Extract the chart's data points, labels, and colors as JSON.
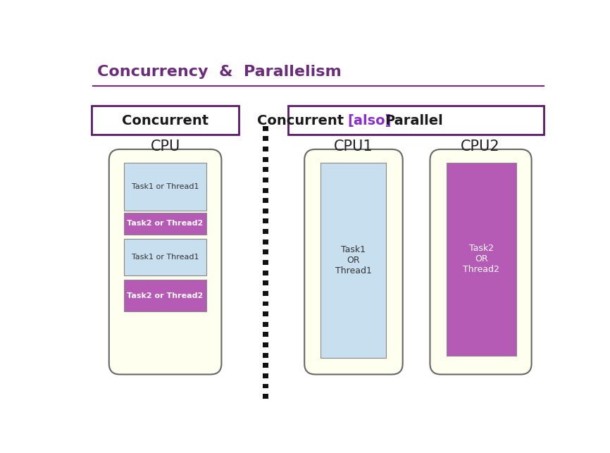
{
  "title": "Concurrency  &  Parallelism",
  "title_color": "#6b2c7a",
  "title_fontsize": 16,
  "bg_color": "#ffffff",
  "line_color": "#7b2882",
  "concurrent_label": "Concurrent",
  "cpu_label": "CPU",
  "cpu1_label": "CPU1",
  "cpu2_label": "CPU2",
  "cpu_bg_color": "#fffff0",
  "cpu_border_color": "#666666",
  "blue_task_color": "#c8dff0",
  "purple_task_color": "#b55ab5",
  "box_border_color": "#888888",
  "section_box_border": "#5a1a6a",
  "dashed_line_color": "#111111",
  "task_label_blue1": "Task1 or Thread1",
  "task_label_purple1": "Task2 or Thread2",
  "task_label_blue2": "Task1 or Thread1",
  "task_label_purple2": "Task2 or Thread2",
  "task1_parallel_label": "Task1\nOR\nThread1",
  "task2_parallel_label": "Task2\nOR\nThread2"
}
